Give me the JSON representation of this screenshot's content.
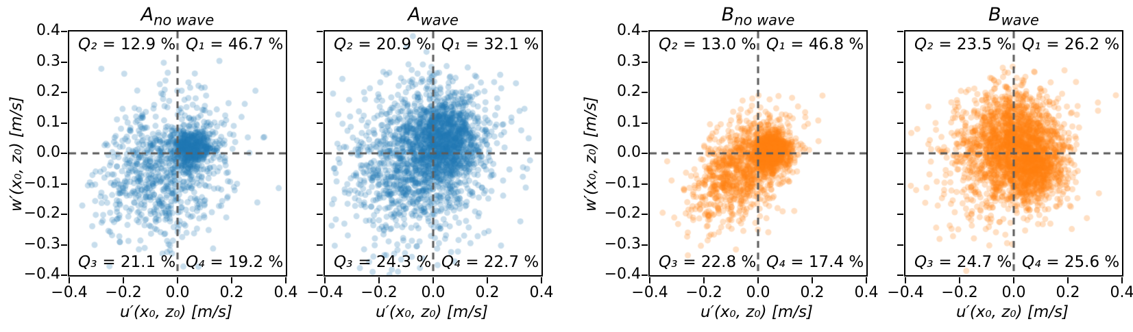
{
  "figure": {
    "background": "#ffffff",
    "axis_color": "#000000",
    "crosshair_color": "#5a5a5a"
  },
  "chart_data": [
    {
      "type": "scatter",
      "title_base": "A",
      "title_sub": "no wave",
      "xlabel": "u′(x₀, z₀) [m/s]",
      "ylabel": "w′(x₀, z₀) [m/s]",
      "xlim": [
        -0.4,
        0.4
      ],
      "ylim": [
        -0.4,
        0.4
      ],
      "x_ticks": [
        "−0.4",
        "−0.2",
        "0.0",
        "0.2",
        "0.4"
      ],
      "y_ticks": [
        "0.4",
        "0.3",
        "0.2",
        "0.1",
        "0.0",
        "−0.1",
        "−0.2",
        "−0.3",
        "−0.4"
      ],
      "show_y_tick_labels": true,
      "quadrants": {
        "q2": {
          "sym": "Q₂",
          "rest": "= 12.9 %",
          "value_pct": 12.9
        },
        "q1": {
          "sym": "Q₁",
          "rest": "= 46.7 %",
          "value_pct": 46.7
        },
        "q3": {
          "sym": "Q₃",
          "rest": "= 21.1 %",
          "value_pct": 21.1
        },
        "q4": {
          "sym": "Q₄",
          "rest": "= 19.2 %",
          "value_pct": 19.2
        }
      },
      "crosshair": {
        "x": 0.0,
        "y": 0.0
      },
      "marker_color": "#1f77b4",
      "marker_alpha": 0.25,
      "marker_radius": 4.5,
      "scatter_cloud": {
        "n": 1300,
        "seed": 7,
        "clusters": [
          {
            "w": 0.38,
            "cx": 0.055,
            "cy": 0.02,
            "sx": 0.035,
            "sy": 0.03,
            "rho": 0.0
          },
          {
            "w": 0.62,
            "cx": -0.05,
            "cy": -0.05,
            "sx": 0.12,
            "sy": 0.11,
            "rho": 0.15
          }
        ]
      }
    },
    {
      "type": "scatter",
      "title_base": "A",
      "title_sub": "wave",
      "xlabel": "u′(x₀, z₀) [m/s]",
      "ylabel": null,
      "xlim": [
        -0.4,
        0.4
      ],
      "ylim": [
        -0.4,
        0.4
      ],
      "x_ticks": [
        "−0.4",
        "−0.2",
        "0.0",
        "0.2",
        "0.4"
      ],
      "y_ticks": [
        "0.4",
        "0.3",
        "0.2",
        "0.1",
        "0.0",
        "−0.1",
        "−0.2",
        "−0.3",
        "−0.4"
      ],
      "show_y_tick_labels": false,
      "quadrants": {
        "q2": {
          "sym": "Q₂",
          "rest": "= 20.9 %",
          "value_pct": 20.9
        },
        "q1": {
          "sym": "Q₁",
          "rest": "= 32.1 %",
          "value_pct": 32.1
        },
        "q3": {
          "sym": "Q₃",
          "rest": "= 24.3 %",
          "value_pct": 24.3
        },
        "q4": {
          "sym": "Q₄",
          "rest": "= 22.7 %",
          "value_pct": 22.7
        }
      },
      "crosshair": {
        "x": 0.0,
        "y": 0.0
      },
      "marker_color": "#1f77b4",
      "marker_alpha": 0.25,
      "marker_radius": 4.5,
      "scatter_cloud": {
        "n": 2200,
        "seed": 13,
        "clusters": [
          {
            "w": 0.45,
            "cx": 0.04,
            "cy": 0.05,
            "sx": 0.065,
            "sy": 0.07,
            "rho": 0.0
          },
          {
            "w": 0.55,
            "cx": -0.05,
            "cy": -0.03,
            "sx": 0.135,
            "sy": 0.13,
            "rho": 0.1
          }
        ]
      }
    },
    {
      "type": "scatter",
      "title_base": "B",
      "title_sub": "no wave",
      "xlabel": "u′(x₀, z₀) [m/s]",
      "ylabel": "w′(x₀, z₀) [m/s]",
      "xlim": [
        -0.4,
        0.4
      ],
      "ylim": [
        -0.4,
        0.4
      ],
      "x_ticks": [
        "−0.4",
        "−0.2",
        "0.0",
        "0.2",
        "0.4"
      ],
      "y_ticks": [
        "0.4",
        "0.3",
        "0.2",
        "0.1",
        "0.0",
        "−0.1",
        "−0.2",
        "−0.3",
        "−0.4"
      ],
      "show_y_tick_labels": true,
      "quadrants": {
        "q2": {
          "sym": "Q₂",
          "rest": "= 13.0 %",
          "value_pct": 13.0
        },
        "q1": {
          "sym": "Q₁",
          "rest": "= 46.8 %",
          "value_pct": 46.8
        },
        "q3": {
          "sym": "Q₃",
          "rest": "= 22.8 %",
          "value_pct": 22.8
        },
        "q4": {
          "sym": "Q₄",
          "rest": "= 17.4 %",
          "value_pct": 17.4
        }
      },
      "crosshair": {
        "x": 0.0,
        "y": 0.0
      },
      "marker_color": "#ff7f0e",
      "marker_alpha": 0.25,
      "marker_radius": 4.5,
      "scatter_cloud": {
        "n": 1800,
        "seed": 21,
        "clusters": [
          {
            "w": 0.45,
            "cx": 0.055,
            "cy": 0.008,
            "sx": 0.032,
            "sy": 0.03,
            "rho": 0.0
          },
          {
            "w": 0.55,
            "cx": -0.055,
            "cy": -0.05,
            "sx": 0.09,
            "sy": 0.085,
            "rho": 0.4
          }
        ]
      }
    },
    {
      "type": "scatter",
      "title_base": "B",
      "title_sub": "wave",
      "xlabel": "u′(x₀, z₀) [m/s]",
      "ylabel": null,
      "xlim": [
        -0.4,
        0.4
      ],
      "ylim": [
        -0.4,
        0.4
      ],
      "x_ticks": [
        "−0.4",
        "−0.2",
        "0.0",
        "0.2",
        "0.4"
      ],
      "y_ticks": [
        "0.4",
        "0.3",
        "0.2",
        "0.1",
        "0.0",
        "−0.1",
        "−0.2",
        "−0.3",
        "−0.4"
      ],
      "show_y_tick_labels": false,
      "quadrants": {
        "q2": {
          "sym": "Q₂",
          "rest": "= 23.5 %",
          "value_pct": 23.5
        },
        "q1": {
          "sym": "Q₁",
          "rest": "= 26.2 %",
          "value_pct": 26.2
        },
        "q3": {
          "sym": "Q₃",
          "rest": "= 24.7 %",
          "value_pct": 24.7
        },
        "q4": {
          "sym": "Q₄",
          "rest": "= 25.6 %",
          "value_pct": 25.6
        }
      },
      "crosshair": {
        "x": 0.0,
        "y": 0.0
      },
      "marker_color": "#ff7f0e",
      "marker_alpha": 0.25,
      "marker_radius": 4.5,
      "scatter_cloud": {
        "n": 2600,
        "seed": 42,
        "clusters": [
          {
            "w": 0.3,
            "cx": 0.07,
            "cy": -0.05,
            "sx": 0.06,
            "sy": 0.055,
            "rho": 0.0
          },
          {
            "w": 0.35,
            "cx": 0.0,
            "cy": 0.06,
            "sx": 0.08,
            "sy": 0.07,
            "rho": 0.0
          },
          {
            "w": 0.35,
            "cx": -0.03,
            "cy": -0.015,
            "sx": 0.12,
            "sy": 0.115,
            "rho": 0.1
          }
        ]
      }
    }
  ]
}
